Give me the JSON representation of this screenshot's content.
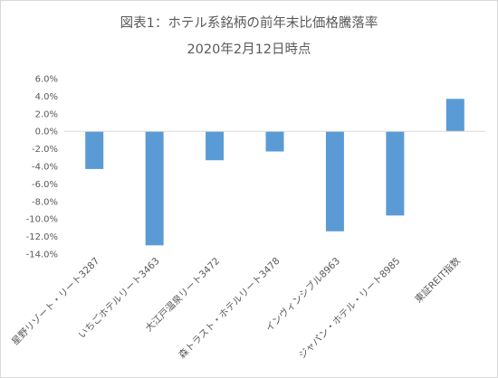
{
  "chart_data": {
    "type": "bar",
    "title": "図表1：ホテル系銘柄の前年末比価格騰落率",
    "subtitle": "2020年2月12日時点",
    "categories": [
      "星野リゾート・リート3287",
      "いちごホテルリート3463",
      "大江戸温泉リート3472",
      "森トラスト・ホテルリート3478",
      "インヴィンシブル8963",
      "ジャパン・ホテル・リート8985",
      "東証REIT指数"
    ],
    "values": [
      -4.3,
      -13.0,
      -3.3,
      -2.3,
      -11.4,
      -9.6,
      3.7
    ],
    "ylim": [
      -14,
      6
    ],
    "yticks": [
      "6.0%",
      "4.0%",
      "2.0%",
      "0.0%",
      "-2.0%",
      "-4.0%",
      "-6.0%",
      "-8.0%",
      "-10.0%",
      "-12.0%",
      "-14.0%"
    ],
    "grid": false,
    "legend": "none",
    "bar_color": "#5b9bd5",
    "axis_color": "#d9d9d9"
  }
}
